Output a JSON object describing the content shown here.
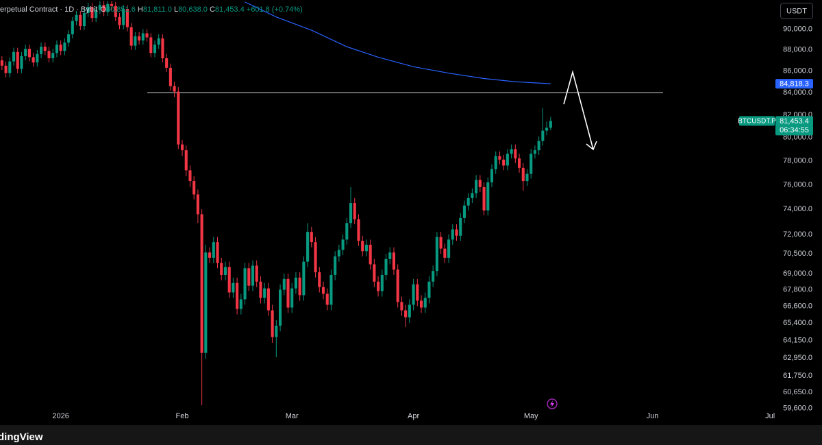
{
  "header": {
    "instrument": "erpetual Contract · 1D · Bybit",
    "ohlc": [
      {
        "key": "O",
        "value": "80,851.6"
      },
      {
        "key": "H",
        "value": "81,811.0"
      },
      {
        "key": "L",
        "value": "80,638.0"
      },
      {
        "key": "C",
        "value": "81,453.4"
      }
    ],
    "change": "+601.8 (+0.74%)"
  },
  "currency_button": "USDT",
  "footer_logo": "dingView",
  "chart_data": {
    "type": "candlestick",
    "log_scale": true,
    "up_color": "#089981",
    "down_color": "#f23645",
    "open": [
      87000,
      86500,
      85800,
      86900,
      87800,
      86200,
      87400,
      88100,
      87300,
      86800,
      87600,
      88300,
      87900,
      87200,
      87700,
      88500,
      87900,
      88700,
      89500,
      90800,
      91400,
      90300,
      91600,
      92200,
      91100,
      91900,
      92400,
      91700,
      92500,
      92300,
      91200,
      90400,
      92000,
      90200,
      88400,
      89300,
      88900,
      89600,
      89200,
      87700,
      88500,
      89100,
      87200,
      86300,
      84600,
      84100,
      79400,
      78900,
      77200,
      76300,
      75200,
      73600,
      63300,
      70600,
      70200,
      71400,
      69800,
      68900,
      69500,
      67600,
      68300,
      66400,
      67100,
      69400,
      68100,
      69600,
      68400,
      67200,
      67900,
      66300,
      64400,
      65200,
      67800,
      68600,
      66500,
      67900,
      68700,
      67400,
      69900,
      72200,
      71400,
      69100,
      68000,
      67500,
      66700,
      68900,
      70300,
      70800,
      71600,
      72900,
      74500,
      73200,
      71500,
      70700,
      71200,
      69700,
      68400,
      67700,
      68900,
      70100,
      70600,
      69300,
      66900,
      66300,
      65800,
      66700,
      68200,
      67000,
      66500,
      67200,
      68400,
      69200,
      71800,
      70900,
      70200,
      71600,
      72400,
      71900,
      73300,
      74300,
      74900,
      75300,
      76400,
      75800,
      73900,
      76200,
      77300,
      78400,
      78100,
      77600,
      78600,
      79000,
      78200,
      77400,
      76300,
      76900,
      78600,
      78900,
      79700,
      80600,
      80851.6
    ],
    "high": [
      87400,
      86900,
      87300,
      88200,
      88200,
      87800,
      88500,
      88500,
      87700,
      88000,
      88700,
      88700,
      88300,
      88100,
      88900,
      88900,
      89100,
      89900,
      91200,
      91800,
      91800,
      92000,
      92600,
      92600,
      92300,
      92800,
      92800,
      92800,
      92800,
      92700,
      91600,
      92400,
      92400,
      90600,
      89700,
      89700,
      90000,
      90000,
      89600,
      88900,
      89500,
      89500,
      87600,
      86700,
      85000,
      84500,
      79800,
      79300,
      77600,
      76700,
      75600,
      74000,
      71200,
      71000,
      71800,
      71800,
      70200,
      69900,
      69900,
      68700,
      68700,
      67500,
      69800,
      69800,
      70000,
      70000,
      68800,
      68300,
      68300,
      66700,
      65600,
      68200,
      69000,
      69000,
      68300,
      69100,
      69100,
      70300,
      72900,
      72600,
      71800,
      69500,
      68400,
      67900,
      69300,
      70700,
      71200,
      72000,
      73300,
      75800,
      74900,
      73600,
      71900,
      71600,
      71600,
      70100,
      68800,
      69300,
      70500,
      71000,
      71000,
      69700,
      67300,
      66700,
      67100,
      68600,
      68600,
      67400,
      67600,
      68800,
      69600,
      72200,
      72200,
      71300,
      72000,
      72800,
      72800,
      73700,
      74700,
      75300,
      75700,
      76800,
      76800,
      76200,
      76600,
      77700,
      78800,
      78800,
      78500,
      79000,
      79400,
      79400,
      78600,
      77800,
      77300,
      79000,
      79300,
      80100,
      82600,
      81400,
      81811
    ],
    "low": [
      86100,
      85400,
      85400,
      86500,
      85800,
      85800,
      87000,
      86900,
      86400,
      86400,
      87200,
      87500,
      86800,
      86800,
      87300,
      87500,
      87500,
      88300,
      89100,
      90400,
      89900,
      89900,
      91200,
      90700,
      90700,
      91500,
      91300,
      91300,
      91900,
      90800,
      90000,
      90000,
      89800,
      88000,
      88000,
      88500,
      88500,
      88800,
      87300,
      87300,
      88100,
      86800,
      85900,
      84200,
      83600,
      79000,
      78400,
      76700,
      75800,
      74800,
      72900,
      59800,
      62900,
      69800,
      69800,
      69400,
      68500,
      68500,
      67200,
      67200,
      66000,
      66000,
      66700,
      67700,
      67700,
      68000,
      66800,
      66800,
      65900,
      64000,
      63000,
      64800,
      67400,
      66100,
      66100,
      67500,
      67000,
      67000,
      69500,
      71000,
      68700,
      67600,
      67100,
      66300,
      66300,
      68500,
      69900,
      70400,
      71200,
      72500,
      72800,
      71100,
      70300,
      70300,
      69300,
      68000,
      67300,
      67300,
      68500,
      69700,
      68900,
      66500,
      65900,
      65100,
      65400,
      66300,
      66600,
      66100,
      66100,
      66800,
      68000,
      68800,
      70500,
      69800,
      69800,
      71200,
      71500,
      71500,
      72900,
      73900,
      74500,
      74900,
      75400,
      73500,
      73500,
      75800,
      76900,
      77700,
      77200,
      77200,
      78200,
      77800,
      77000,
      75500,
      75900,
      76500,
      78200,
      78500,
      79300,
      80200,
      80638
    ],
    "close": [
      86500,
      85800,
      86900,
      87800,
      86200,
      87400,
      88100,
      87300,
      86800,
      87600,
      88300,
      87900,
      87200,
      87700,
      88500,
      87900,
      88700,
      89500,
      90800,
      91400,
      90300,
      91600,
      92200,
      91100,
      91900,
      92400,
      91700,
      92500,
      92300,
      91200,
      90400,
      92000,
      90200,
      88400,
      89300,
      88900,
      89600,
      89200,
      87700,
      88500,
      89100,
      87200,
      86300,
      84600,
      84100,
      79400,
      78900,
      77200,
      76300,
      75200,
      73600,
      63300,
      70600,
      70200,
      71400,
      69800,
      68900,
      69500,
      67600,
      68300,
      66400,
      67100,
      69400,
      68100,
      69600,
      68400,
      67200,
      67900,
      66300,
      64400,
      65200,
      67800,
      68600,
      66500,
      67900,
      68700,
      67400,
      69900,
      72200,
      71400,
      69100,
      68000,
      67500,
      66700,
      68900,
      70300,
      70800,
      71600,
      72900,
      74500,
      73200,
      71500,
      70700,
      71200,
      69700,
      68400,
      67700,
      68900,
      70100,
      70600,
      69300,
      66900,
      66300,
      65800,
      66700,
      68200,
      67000,
      66500,
      67200,
      68400,
      69200,
      71800,
      70900,
      70200,
      71600,
      72400,
      71900,
      73300,
      74300,
      74900,
      75300,
      76400,
      75800,
      73900,
      76200,
      77300,
      78400,
      78100,
      77600,
      78600,
      79000,
      78200,
      77400,
      76300,
      76900,
      78600,
      78900,
      79700,
      80600,
      80851.6,
      81453.4
    ],
    "ma": {
      "color": "#2962ff",
      "x": [
        62,
        70,
        79,
        88,
        96,
        105,
        114,
        123,
        131,
        140
      ],
      "values": [
        92700,
        91200,
        89900,
        88300,
        87300,
        86400,
        85800,
        85300,
        85000,
        84818.3
      ],
      "last_label": "84,818.3"
    },
    "level": 84000,
    "last_price_tag": {
      "symbol": "BTCUSDT.P",
      "label": "81,453.4",
      "countdown": "06:34:55"
    },
    "xlim": [
      -0.5,
      187.4
    ],
    "xticks": [
      {
        "value": 15,
        "label": "2026"
      },
      {
        "value": 46,
        "label": "Feb"
      },
      {
        "value": 74,
        "label": "Mar"
      },
      {
        "value": 105,
        "label": "Apr"
      },
      {
        "value": 135,
        "label": "May"
      },
      {
        "value": 166,
        "label": "Jun"
      },
      {
        "value": 196,
        "label": "Jul"
      }
    ],
    "ylim": [
      59400,
      92900
    ],
    "yticks": [
      {
        "value": 59600,
        "label": "59,600.0"
      },
      {
        "value": 60650,
        "label": "60,650.0"
      },
      {
        "value": 61750,
        "label": "61,750.0"
      },
      {
        "value": 62950,
        "label": "62,950.0"
      },
      {
        "value": 64150,
        "label": "64,150.0"
      },
      {
        "value": 65400,
        "label": "65,400.0"
      },
      {
        "value": 66600,
        "label": "66,600.0"
      },
      {
        "value": 67800,
        "label": "67,800.0"
      },
      {
        "value": 69000,
        "label": "69,000.0"
      },
      {
        "value": 70500,
        "label": "70,500.0"
      },
      {
        "value": 72000,
        "label": "72,000.0"
      },
      {
        "value": 74000,
        "label": "74,000.0"
      },
      {
        "value": 76000,
        "label": "76,000.0"
      },
      {
        "value": 78000,
        "label": "78,000.0"
      },
      {
        "value": 80000,
        "label": "80,000.0"
      },
      {
        "value": 82000,
        "label": "82,000.0"
      },
      {
        "value": 84000,
        "label": "84,000.0"
      },
      {
        "value": 86000,
        "label": "86,000.0"
      },
      {
        "value": 88000,
        "label": "88,000.0"
      },
      {
        "value": 90000,
        "label": "90,000.0"
      }
    ]
  }
}
